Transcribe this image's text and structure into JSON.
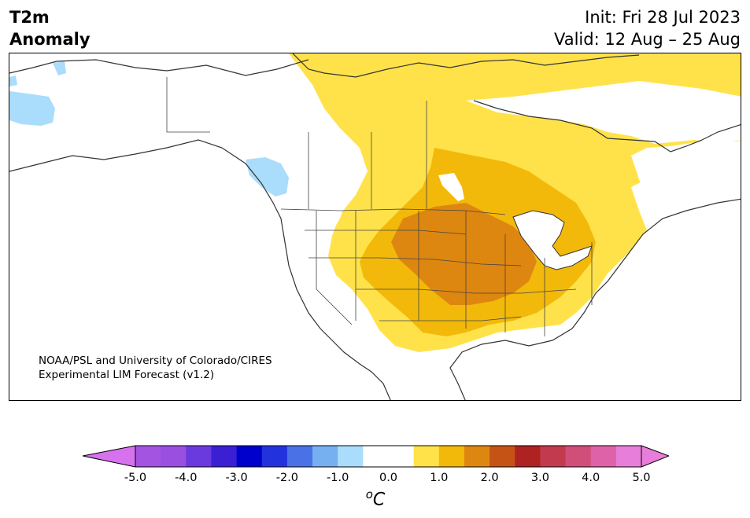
{
  "title": {
    "line1": "T2m",
    "line2": "Anomaly",
    "init": "Init: Fri 28 Jul 2023",
    "valid": "Valid: 12 Aug – 25 Aug"
  },
  "credit": {
    "line1": "NOAA/PSL and University of Colorado/CIRES",
    "line2": "Experimental LIM Forecast (v1.2)"
  },
  "colorbar": {
    "unit_base": "C",
    "unit_sup": "o",
    "ticks": [
      "-5.0",
      "-4.0",
      "-3.0",
      "-2.0",
      "-1.0",
      "0.0",
      "1.0",
      "2.0",
      "3.0",
      "4.0",
      "5.0"
    ],
    "bins": [
      {
        "from": -5.0,
        "to": -4.5,
        "color": "#a354e0"
      },
      {
        "from": -4.5,
        "to": -4.0,
        "color": "#9a4fe0"
      },
      {
        "from": -4.0,
        "to": -3.5,
        "color": "#6a3adf"
      },
      {
        "from": -3.5,
        "to": -3.0,
        "color": "#3b1fd3"
      },
      {
        "from": -3.0,
        "to": -2.5,
        "color": "#0000cc"
      },
      {
        "from": -2.5,
        "to": -2.0,
        "color": "#2233dd"
      },
      {
        "from": -2.0,
        "to": -1.5,
        "color": "#4a72e6"
      },
      {
        "from": -1.5,
        "to": -1.0,
        "color": "#76b0f0"
      },
      {
        "from": -1.0,
        "to": -0.5,
        "color": "#aadcfb"
      },
      {
        "from": -0.5,
        "to": 0.5,
        "color": "#ffffff"
      },
      {
        "from": 0.5,
        "to": 1.0,
        "color": "#ffe24a"
      },
      {
        "from": 1.0,
        "to": 1.5,
        "color": "#f2b90a"
      },
      {
        "from": 1.5,
        "to": 2.0,
        "color": "#dd8710"
      },
      {
        "from": 2.0,
        "to": 2.5,
        "color": "#c55316"
      },
      {
        "from": 2.5,
        "to": 3.0,
        "color": "#ae2222"
      },
      {
        "from": 3.0,
        "to": 3.5,
        "color": "#c23a4e"
      },
      {
        "from": 3.5,
        "to": 4.0,
        "color": "#cf4f7a"
      },
      {
        "from": 4.0,
        "to": 4.5,
        "color": "#dd62a8"
      },
      {
        "from": 4.5,
        "to": 5.0,
        "color": "#e77ed9"
      }
    ],
    "extend_low_color": "#d672ee",
    "extend_high_color": "#e77ed9"
  },
  "map_colors": {
    "anomaly_1_0": "#ffe24a",
    "anomaly_1_5": "#f2b90a",
    "anomaly_2_0": "#dd8710",
    "cool_anomaly": "#aadcfb",
    "coastline": "#333333",
    "border": "#444444"
  }
}
